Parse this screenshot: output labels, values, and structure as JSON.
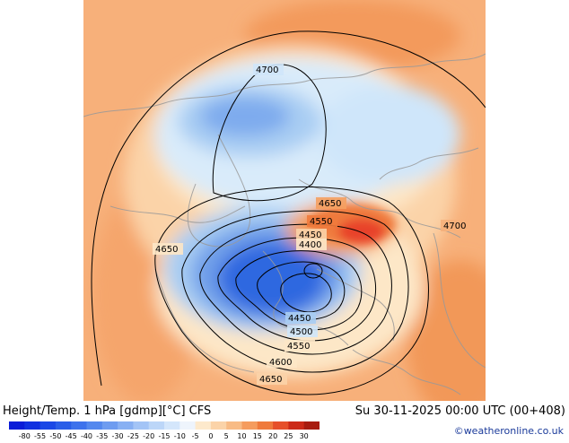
{
  "map": {
    "contours": [
      {
        "label": "4700",
        "lx": 0,
        "ly": 0
      },
      {
        "label": "4650"
      },
      {
        "label": "4550"
      },
      {
        "label": "4450"
      },
      {
        "label": "4400"
      },
      {
        "label": "4650"
      },
      {
        "label": "4700"
      },
      {
        "label": "4450"
      },
      {
        "label": "4500"
      },
      {
        "label": "4550"
      },
      {
        "label": "4600"
      },
      {
        "label": "4650"
      }
    ],
    "colors": {
      "very_warm": "#f08a4a",
      "warm": "#f7b07a",
      "mild": "#fbd3a8",
      "cream": "#fde7c7",
      "pale_blue": "#cfe6fa",
      "light_blue": "#a9cdf3",
      "mid_blue": "#6f9fe9",
      "deep_blue": "#2d67e0",
      "hot_red": "#e8432a"
    }
  },
  "footer": {
    "title": "Height/Temp. 1 hPa [gdmp][°C] CFS",
    "time": "Su 30-11-2025 00:00 UTC (00+408)",
    "credit": "©weatheronline.co.uk"
  },
  "colorbar": {
    "labels": [
      "-80",
      "-55",
      "-50",
      "-45",
      "-40",
      "-35",
      "-30",
      "-25",
      "-20",
      "-15",
      "-10",
      "-5",
      "0",
      "5",
      "10",
      "15",
      "20",
      "25",
      "30"
    ],
    "colors": [
      "#0a1cd8",
      "#1030e0",
      "#1a48e6",
      "#2a5ee8",
      "#3d72ec",
      "#5488ee",
      "#6e9cf0",
      "#88b0f3",
      "#a3c4f6",
      "#bcd6f8",
      "#d4e6fb",
      "#eef4fc",
      "#fde9cc",
      "#fbd3a8",
      "#f8bb85",
      "#f59c5e",
      "#ef7a3c",
      "#e6502a",
      "#cc2a18",
      "#a81c10"
    ]
  }
}
